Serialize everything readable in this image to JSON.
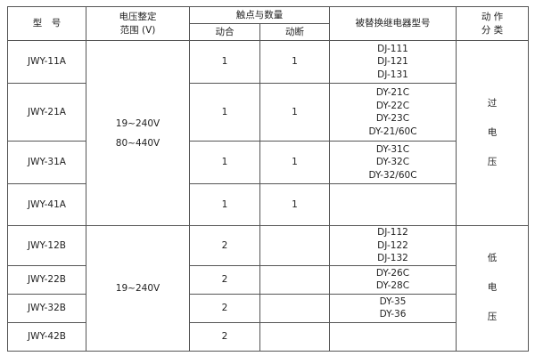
{
  "header": {
    "model": "型　号",
    "voltage_range_line1": "电压整定",
    "voltage_range_line2": "范围 (V)",
    "contacts": "触点与数量",
    "contacts_make": "动合",
    "contacts_break": "动断",
    "replaced_relays": "被替换继电器型号",
    "action_line1": "动 作",
    "action_line2": "分 类"
  },
  "groups": [
    {
      "voltage": [
        "19~240V",
        "80~440V"
      ],
      "action": [
        "过",
        "电",
        "压"
      ]
    },
    {
      "voltage": [
        "19~240V"
      ],
      "action": [
        "低",
        "电",
        "压"
      ]
    }
  ],
  "rows": [
    {
      "model": "JWY-11A",
      "make": "1",
      "break": "1",
      "replaced": [
        "DJ-111",
        "DJ-121",
        "DJ-131"
      ]
    },
    {
      "model": "JWY-21A",
      "make": "1",
      "break": "1",
      "replaced": [
        "DY-21C",
        "DY-22C",
        "DY-23C",
        "DY-21/60C"
      ]
    },
    {
      "model": "JWY-31A",
      "make": "1",
      "break": "1",
      "replaced": [
        "DY-31C",
        "DY-32C",
        "DY-32/60C"
      ]
    },
    {
      "model": "JWY-41A",
      "make": "1",
      "break": "1",
      "replaced": []
    },
    {
      "model": "JWY-12B",
      "make": "2",
      "break": "",
      "replaced": [
        "DJ-112",
        "DJ-122",
        "DJ-132"
      ]
    },
    {
      "model": "JWY-22B",
      "make": "2",
      "break": "",
      "replaced": [
        "DY-26C",
        "DY-28C"
      ]
    },
    {
      "model": "JWY-32B",
      "make": "2",
      "break": "",
      "replaced": [
        "DY-35",
        "DY-36"
      ]
    },
    {
      "model": "JWY-42B",
      "make": "2",
      "break": "",
      "replaced": []
    }
  ]
}
